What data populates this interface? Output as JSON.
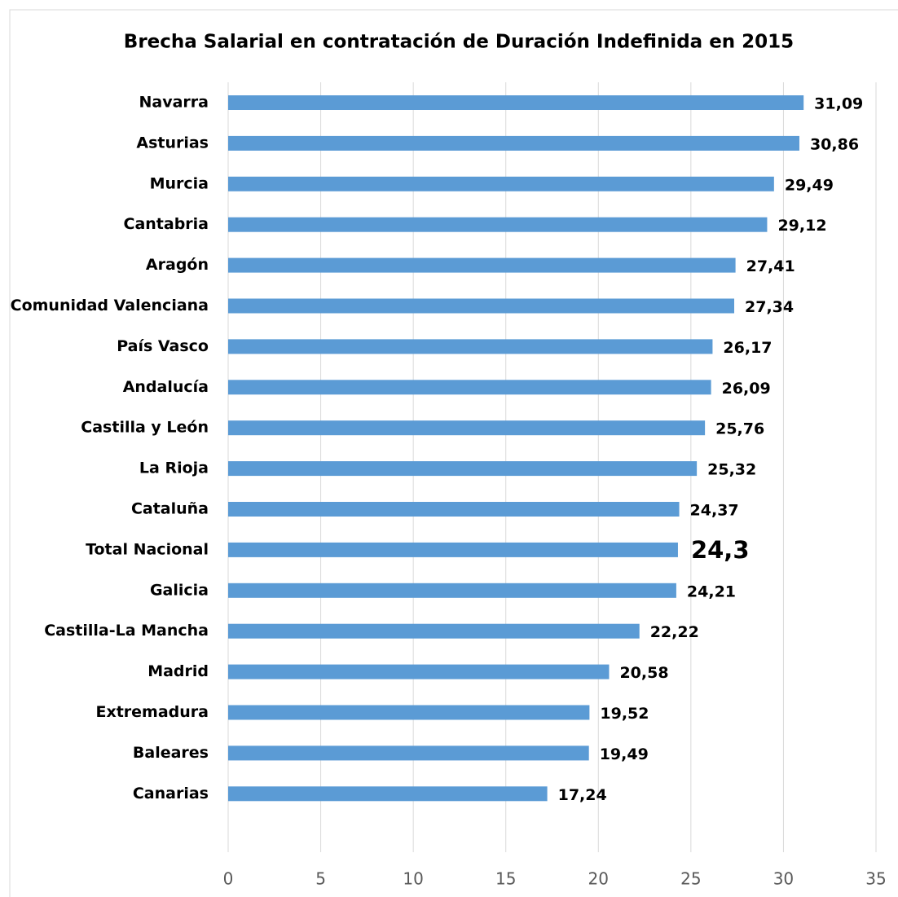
{
  "chart_data": {
    "type": "barh",
    "title": "Brecha Salarial en contratación de Duración Indefinida en 2015",
    "categories": [
      "Navarra",
      "Asturias",
      "Murcia",
      "Cantabria",
      "Aragón",
      "Comunidad Valenciana",
      "País Vasco",
      "Andalucía",
      "Castilla y León",
      "La Rioja",
      "Cataluña",
      "Total Nacional",
      "Galicia",
      "Castilla-La Mancha",
      "Madrid",
      "Extremadura",
      "Baleares",
      "Canarias"
    ],
    "values": [
      31.09,
      30.86,
      29.49,
      29.12,
      27.41,
      27.34,
      26.17,
      26.09,
      25.76,
      25.32,
      24.37,
      24.3,
      24.21,
      22.22,
      20.58,
      19.52,
      19.49,
      17.24
    ],
    "value_labels": [
      "31,09",
      "30,86",
      "29,49",
      "29,12",
      "27,41",
      "27,34",
      "26,17",
      "26,09",
      "25,76",
      "25,32",
      "24,37",
      "24,3",
      "24,21",
      "22,22",
      "20,58",
      "19,52",
      "19,49",
      "17,24"
    ],
    "color": "#5b9bd5",
    "highlight_category": "Total Nacional",
    "xlim": [
      0,
      35
    ],
    "xticks": [
      0,
      5,
      10,
      15,
      20,
      25,
      30,
      35
    ],
    "grid": true
  }
}
